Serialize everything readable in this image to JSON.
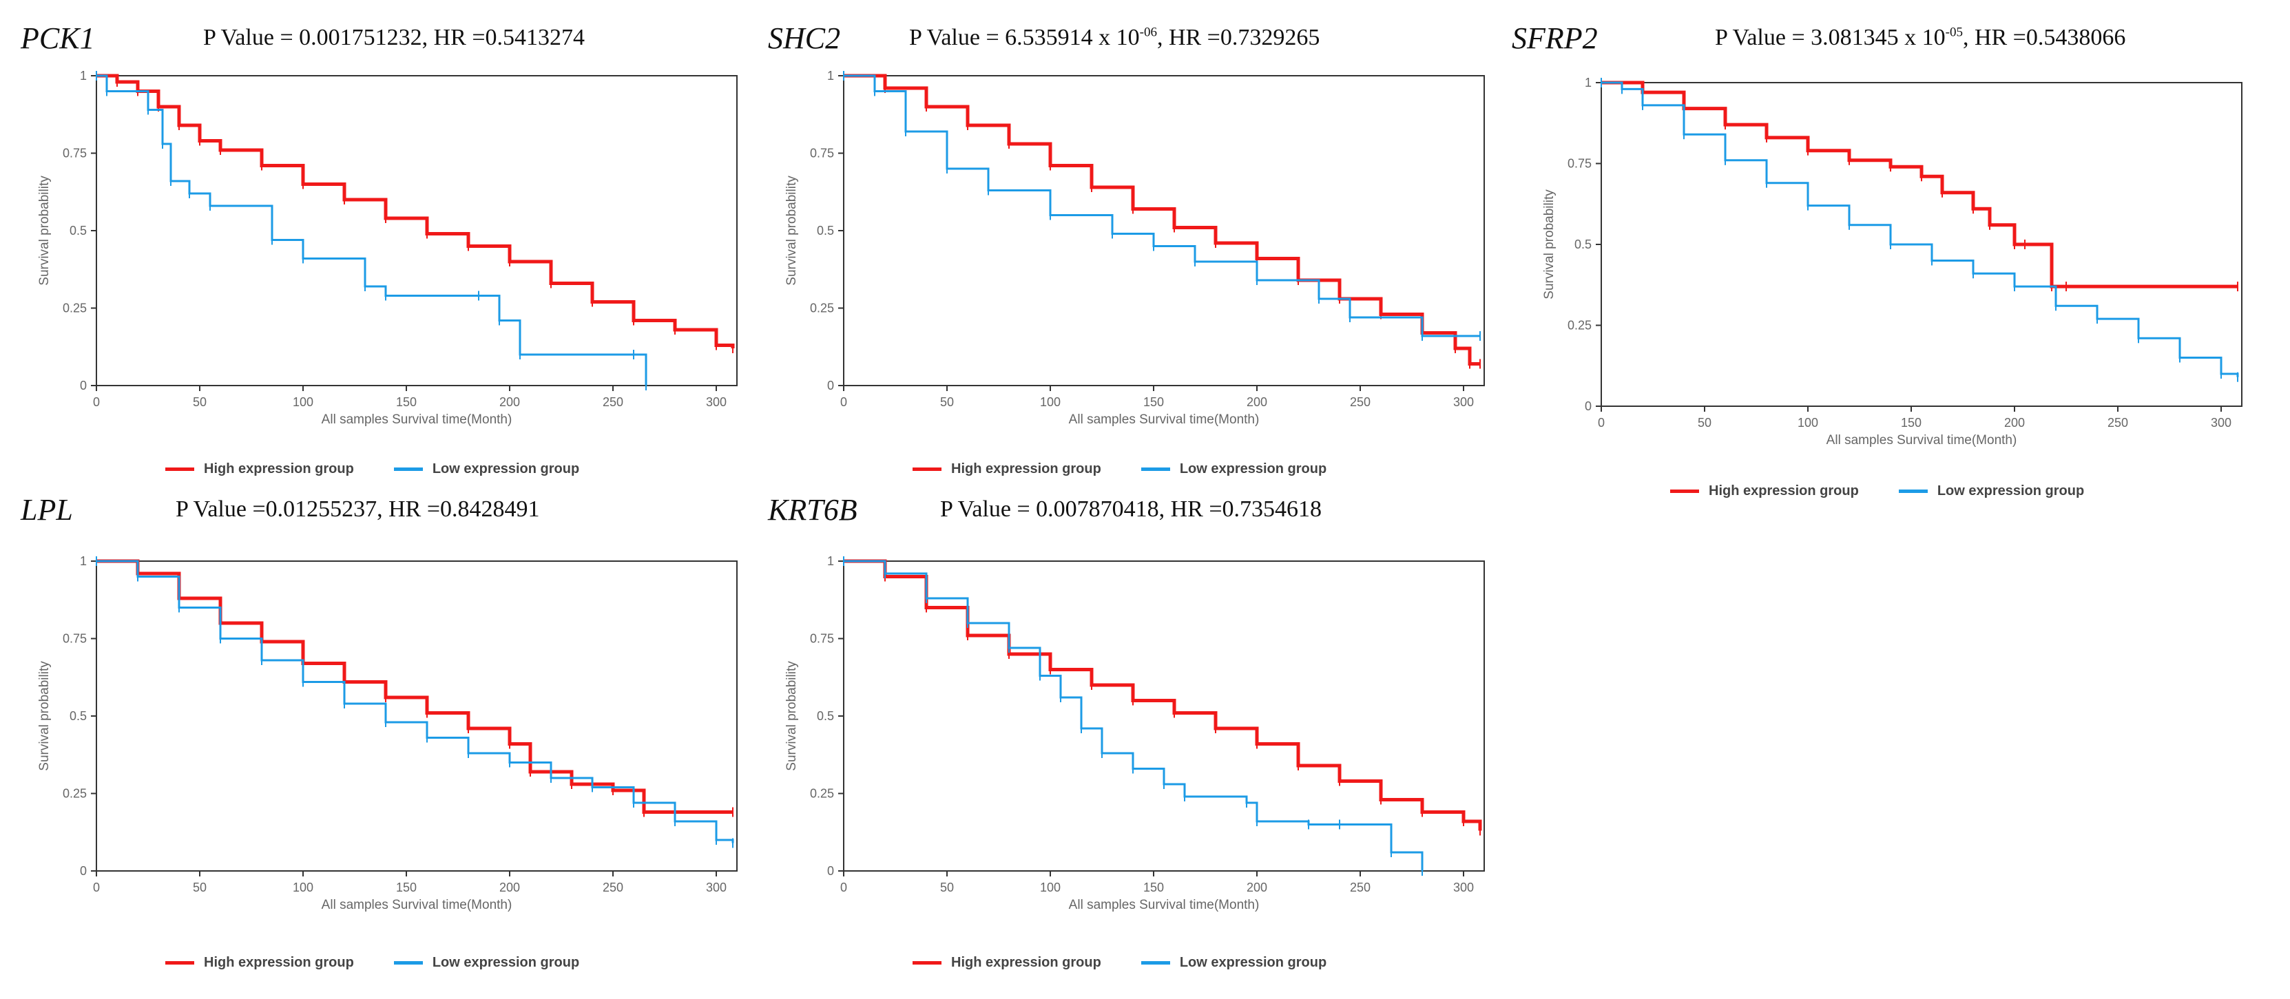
{
  "colors": {
    "high": "#f01919",
    "low": "#1c9be6"
  },
  "chart_data": [
    {
      "type": "line",
      "gene": "PCK1",
      "title_main": "P Value = 0.001751232, HR =0.5413274",
      "title_sup": "",
      "title_rest": "",
      "xlabel": "All samples Survival time(Month)",
      "ylabel": "Survival probability",
      "xlim": [
        0,
        310
      ],
      "ylim": [
        0,
        1
      ],
      "xticks": [
        "0",
        "50",
        "100",
        "150",
        "200",
        "250",
        "300"
      ],
      "yticks": [
        "0",
        "0.25",
        "0.5",
        "0.75",
        "1"
      ],
      "legend": [
        "High expression group",
        "Low expression group"
      ],
      "series": [
        {
          "name": "High expression group",
          "color": "#f01919",
          "x": [
            0,
            10,
            20,
            30,
            40,
            50,
            60,
            80,
            100,
            120,
            140,
            160,
            180,
            200,
            220,
            240,
            260,
            280,
            300,
            308
          ],
          "y": [
            1,
            0.98,
            0.95,
            0.9,
            0.84,
            0.79,
            0.76,
            0.71,
            0.65,
            0.6,
            0.54,
            0.49,
            0.45,
            0.4,
            0.33,
            0.27,
            0.21,
            0.18,
            0.13,
            0.12
          ]
        },
        {
          "name": "Low expression group",
          "color": "#1c9be6",
          "x": [
            0,
            5,
            25,
            32,
            36,
            45,
            55,
            85,
            100,
            130,
            140,
            185,
            195,
            205,
            260,
            266
          ],
          "y": [
            1,
            0.95,
            0.89,
            0.78,
            0.66,
            0.62,
            0.58,
            0.47,
            0.41,
            0.32,
            0.29,
            0.29,
            0.21,
            0.1,
            0.1,
            0
          ]
        }
      ]
    },
    {
      "type": "line",
      "gene": "SHC2",
      "title_main": "P Value = 6.535914 x 10",
      "title_sup": "-06",
      "title_rest": ", HR =0.7329265",
      "xlabel": "All samples Survival time(Month)",
      "ylabel": "Survival probability",
      "xlim": [
        0,
        310
      ],
      "ylim": [
        0,
        1
      ],
      "xticks": [
        "0",
        "50",
        "100",
        "150",
        "200",
        "250",
        "300"
      ],
      "yticks": [
        "0",
        "0.25",
        "0.5",
        "0.75",
        "1"
      ],
      "legend": [
        "High expression group",
        "Low expression group"
      ],
      "series": [
        {
          "name": "High expression group",
          "color": "#f01919",
          "x": [
            0,
            20,
            40,
            60,
            80,
            100,
            120,
            140,
            160,
            180,
            200,
            220,
            240,
            260,
            280,
            296,
            303,
            308
          ],
          "y": [
            1,
            0.96,
            0.9,
            0.84,
            0.78,
            0.71,
            0.64,
            0.57,
            0.51,
            0.46,
            0.41,
            0.34,
            0.28,
            0.23,
            0.17,
            0.12,
            0.07,
            0.07
          ]
        },
        {
          "name": "Low expression group",
          "color": "#1c9be6",
          "x": [
            0,
            15,
            30,
            50,
            70,
            100,
            130,
            150,
            170,
            200,
            230,
            245,
            280,
            308
          ],
          "y": [
            1,
            0.95,
            0.82,
            0.7,
            0.63,
            0.55,
            0.49,
            0.45,
            0.4,
            0.34,
            0.28,
            0.22,
            0.16,
            0.16
          ]
        }
      ]
    },
    {
      "type": "line",
      "gene": "SFRP2",
      "title_main": "P Value = 3.081345 x 10",
      "title_sup": "-05",
      "title_rest": ", HR =0.5438066",
      "xlabel": "All samples Survival time(Month)",
      "ylabel": "Survival probability",
      "xlim": [
        0,
        310
      ],
      "ylim": [
        0,
        1
      ],
      "xticks": [
        "0",
        "50",
        "100",
        "150",
        "200",
        "250",
        "300"
      ],
      "yticks": [
        "0",
        "0.25",
        "0.5",
        "0.75",
        "1"
      ],
      "legend": [
        "High expression group",
        "Low expression group"
      ],
      "series": [
        {
          "name": "High expression group",
          "color": "#f01919",
          "x": [
            0,
            20,
            40,
            60,
            80,
            100,
            120,
            140,
            155,
            165,
            180,
            188,
            200,
            205,
            218,
            225,
            308
          ],
          "y": [
            1,
            0.97,
            0.92,
            0.87,
            0.83,
            0.79,
            0.76,
            0.74,
            0.71,
            0.66,
            0.61,
            0.56,
            0.5,
            0.5,
            0.37,
            0.37,
            0.37
          ]
        },
        {
          "name": "Low expression group",
          "color": "#1c9be6",
          "x": [
            0,
            10,
            20,
            40,
            60,
            80,
            100,
            120,
            140,
            160,
            180,
            200,
            220,
            240,
            260,
            280,
            300,
            308
          ],
          "y": [
            1,
            0.98,
            0.93,
            0.84,
            0.76,
            0.69,
            0.62,
            0.56,
            0.5,
            0.45,
            0.41,
            0.37,
            0.31,
            0.27,
            0.21,
            0.15,
            0.1,
            0.09
          ]
        }
      ]
    },
    {
      "type": "line",
      "gene": "LPL",
      "title_main": "P Value =0.01255237, HR =0.8428491",
      "title_sup": "",
      "title_rest": "",
      "xlabel": "All samples Survival time(Month)",
      "ylabel": "Survival probability",
      "xlim": [
        0,
        310
      ],
      "ylim": [
        0,
        1
      ],
      "xticks": [
        "0",
        "50",
        "100",
        "150",
        "200",
        "250",
        "300"
      ],
      "yticks": [
        "0",
        "0.25",
        "0.5",
        "0.75",
        "1"
      ],
      "legend": [
        "High expression group",
        "Low expression group"
      ],
      "series": [
        {
          "name": "High expression group",
          "color": "#f01919",
          "x": [
            0,
            20,
            40,
            60,
            80,
            100,
            120,
            140,
            160,
            180,
            200,
            210,
            230,
            250,
            265,
            280,
            308
          ],
          "y": [
            1,
            0.96,
            0.88,
            0.8,
            0.74,
            0.67,
            0.61,
            0.56,
            0.51,
            0.46,
            0.41,
            0.32,
            0.28,
            0.26,
            0.19,
            0.19,
            0.19
          ]
        },
        {
          "name": "Low expression group",
          "color": "#1c9be6",
          "x": [
            0,
            20,
            40,
            60,
            80,
            100,
            120,
            140,
            160,
            180,
            200,
            220,
            240,
            260,
            280,
            300,
            308
          ],
          "y": [
            1,
            0.95,
            0.85,
            0.75,
            0.68,
            0.61,
            0.54,
            0.48,
            0.43,
            0.38,
            0.35,
            0.3,
            0.27,
            0.22,
            0.16,
            0.1,
            0.09
          ]
        }
      ]
    },
    {
      "type": "line",
      "gene": "KRT6B",
      "title_main": "P Value = 0.007870418, HR =0.7354618",
      "title_sup": "",
      "title_rest": "",
      "xlabel": "All samples Survival time(Month)",
      "ylabel": "Survival probability",
      "xlim": [
        0,
        310
      ],
      "ylim": [
        0,
        1
      ],
      "xticks": [
        "0",
        "50",
        "100",
        "150",
        "200",
        "250",
        "300"
      ],
      "yticks": [
        "0",
        "0.25",
        "0.5",
        "0.75",
        "1"
      ],
      "legend": [
        "High expression group",
        "Low expression group"
      ],
      "series": [
        {
          "name": "High expression group",
          "color": "#f01919",
          "x": [
            0,
            20,
            40,
            60,
            80,
            100,
            120,
            140,
            160,
            180,
            200,
            220,
            240,
            260,
            280,
            300,
            308
          ],
          "y": [
            1,
            0.95,
            0.85,
            0.76,
            0.7,
            0.65,
            0.6,
            0.55,
            0.51,
            0.46,
            0.41,
            0.34,
            0.29,
            0.23,
            0.19,
            0.16,
            0.13
          ]
        },
        {
          "name": "Low expression group",
          "color": "#1c9be6",
          "x": [
            0,
            20,
            40,
            60,
            80,
            95,
            105,
            115,
            125,
            140,
            155,
            165,
            195,
            200,
            225,
            240,
            265,
            280
          ],
          "y": [
            1,
            0.96,
            0.88,
            0.8,
            0.72,
            0.63,
            0.56,
            0.46,
            0.38,
            0.33,
            0.28,
            0.24,
            0.22,
            0.16,
            0.15,
            0.15,
            0.06,
            0
          ]
        }
      ]
    }
  ]
}
